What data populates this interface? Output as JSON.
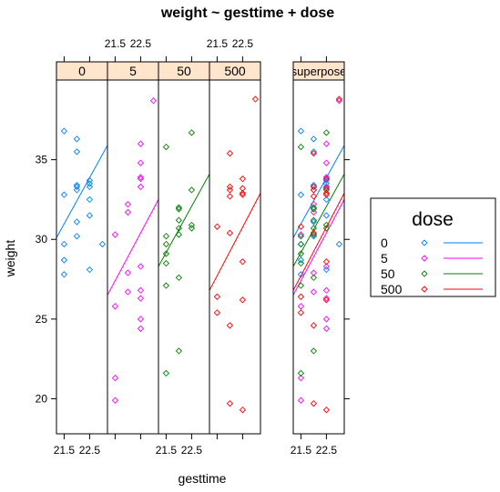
{
  "chart_data": {
    "type": "scatter",
    "title": "weight ~ gesttime + dose",
    "xlabel": "gesttime",
    "ylabel": "weight",
    "xlim": [
      21.2,
      23.2
    ],
    "ylim": [
      17.8,
      40.0
    ],
    "y_ticks": [
      "20",
      "25",
      "30",
      "35"
    ],
    "x_ticks": [
      "21.5",
      "22.5"
    ],
    "panels": [
      "0",
      "5",
      "50",
      "500",
      "superpose"
    ],
    "superpose_panel": "superpose",
    "series": [
      {
        "name": "0",
        "color": "#0080ff",
        "points": [
          [
            21.5,
            36.8
          ],
          [
            21.5,
            32.8
          ],
          [
            21.5,
            29.7
          ],
          [
            21.5,
            28.7
          ],
          [
            21.5,
            27.8
          ],
          [
            22.0,
            36.3
          ],
          [
            22.0,
            35.5
          ],
          [
            22.0,
            33.4
          ],
          [
            22.0,
            33.3
          ],
          [
            22.0,
            33.1
          ],
          [
            22.0,
            31.1
          ],
          [
            22.0,
            30.2
          ],
          [
            22.5,
            33.7
          ],
          [
            22.5,
            33.5
          ],
          [
            22.5,
            33.3
          ],
          [
            22.5,
            32.5
          ],
          [
            22.5,
            31.5
          ],
          [
            22.5,
            28.1
          ],
          [
            23.0,
            29.7
          ]
        ],
        "fit": [
          [
            21.2,
            30.1
          ],
          [
            23.2,
            35.9
          ]
        ]
      },
      {
        "name": "5",
        "color": "#ff00ff",
        "points": [
          [
            21.5,
            30.3
          ],
          [
            21.5,
            25.8
          ],
          [
            21.5,
            21.3
          ],
          [
            21.5,
            19.9
          ],
          [
            22.0,
            32.2
          ],
          [
            22.0,
            31.7
          ],
          [
            22.0,
            27.9
          ],
          [
            22.0,
            26.7
          ],
          [
            22.5,
            36.0
          ],
          [
            22.5,
            34.8
          ],
          [
            22.5,
            33.9
          ],
          [
            22.5,
            33.8
          ],
          [
            22.5,
            33.3
          ],
          [
            22.5,
            28.3
          ],
          [
            22.5,
            26.8
          ],
          [
            22.5,
            26.3
          ],
          [
            22.5,
            25.0
          ],
          [
            22.5,
            24.4
          ],
          [
            23.0,
            38.7
          ]
        ],
        "fit": [
          [
            21.2,
            26.5
          ],
          [
            23.2,
            32.5
          ]
        ]
      },
      {
        "name": "50",
        "color": "#008000",
        "points": [
          [
            21.5,
            35.8
          ],
          [
            21.5,
            30.2
          ],
          [
            21.5,
            29.7
          ],
          [
            21.5,
            29.1
          ],
          [
            21.5,
            28.5
          ],
          [
            21.5,
            27.1
          ],
          [
            21.5,
            21.6
          ],
          [
            22.0,
            32.0
          ],
          [
            22.0,
            31.9
          ],
          [
            22.0,
            31.2
          ],
          [
            22.0,
            30.7
          ],
          [
            22.0,
            30.3
          ],
          [
            22.0,
            27.6
          ],
          [
            22.0,
            23.0
          ],
          [
            22.5,
            36.7
          ],
          [
            22.5,
            33.1
          ],
          [
            22.5,
            30.9
          ],
          [
            22.5,
            30.7
          ]
        ],
        "fit": [
          [
            21.2,
            28.3
          ],
          [
            23.2,
            34.1
          ]
        ]
      },
      {
        "name": "500",
        "color": "#ff0000",
        "points": [
          [
            21.5,
            30.8
          ],
          [
            21.5,
            26.4
          ],
          [
            21.5,
            25.4
          ],
          [
            22.0,
            35.4
          ],
          [
            22.0,
            33.3
          ],
          [
            22.0,
            33.1
          ],
          [
            22.0,
            32.7
          ],
          [
            22.0,
            30.4
          ],
          [
            22.0,
            24.6
          ],
          [
            22.0,
            19.7
          ],
          [
            22.5,
            33.8
          ],
          [
            22.5,
            33.2
          ],
          [
            22.5,
            32.9
          ],
          [
            22.5,
            32.8
          ],
          [
            22.5,
            28.6
          ],
          [
            22.5,
            26.2
          ],
          [
            22.5,
            19.3
          ],
          [
            23.0,
            38.8
          ]
        ],
        "fit": [
          [
            21.2,
            26.8
          ],
          [
            23.2,
            32.9
          ]
        ]
      }
    ],
    "legend": {
      "title": "dose",
      "placement": "right",
      "entries": [
        "0",
        "5",
        "50",
        "500"
      ]
    },
    "grid": false
  }
}
